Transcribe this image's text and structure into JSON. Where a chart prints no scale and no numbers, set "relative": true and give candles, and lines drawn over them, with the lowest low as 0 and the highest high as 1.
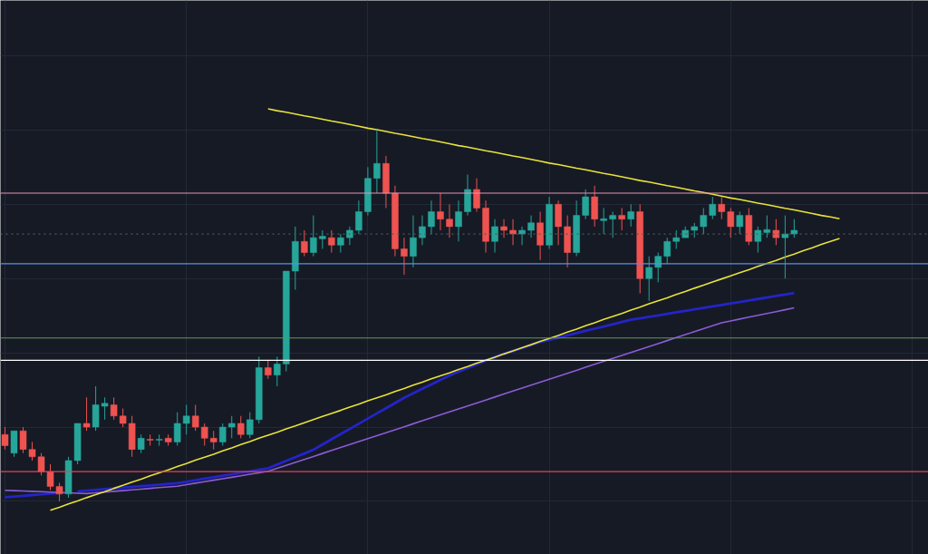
{
  "chart_data": {
    "type": "candlestick",
    "relative": true,
    "grid": true,
    "categories": [
      null,
      null,
      null,
      null,
      null,
      null,
      null,
      null,
      null,
      null,
      null,
      null,
      null,
      null,
      null,
      null,
      null,
      null,
      null,
      null,
      null,
      null,
      null,
      null,
      null,
      null,
      null,
      null,
      null,
      null,
      null,
      null,
      null,
      null,
      null,
      null,
      null,
      null,
      null,
      null,
      null,
      null,
      null,
      null,
      null,
      null,
      null,
      null,
      null,
      null,
      null,
      null,
      null,
      null,
      null,
      null,
      null,
      null,
      null,
      null,
      null,
      null,
      null,
      null,
      null,
      null,
      null,
      null,
      null,
      null,
      null,
      null,
      null,
      null,
      null,
      null,
      null,
      null,
      null,
      null,
      null,
      null,
      null,
      null,
      null,
      null,
      null,
      null,
      null,
      null,
      null,
      null,
      null
    ],
    "ohlc": [
      [
        0.18,
        0.2,
        0.14,
        0.15
      ],
      [
        0.13,
        0.19,
        0.12,
        0.19
      ],
      [
        0.19,
        0.2,
        0.13,
        0.14
      ],
      [
        0.14,
        0.16,
        0.11,
        0.12
      ],
      [
        0.12,
        0.13,
        0.07,
        0.08
      ],
      [
        0.08,
        0.1,
        0.03,
        0.04
      ],
      [
        0.04,
        0.05,
        0,
        0.02
      ],
      [
        0.02,
        0.12,
        0.01,
        0.11
      ],
      [
        0.11,
        0.21,
        0.1,
        0.21
      ],
      [
        0.21,
        0.28,
        0.19,
        0.2
      ],
      [
        0.2,
        0.31,
        0.19,
        0.26
      ],
      [
        0.256,
        0.28,
        0.22,
        0.264
      ],
      [
        0.26,
        0.28,
        0.22,
        0.23
      ],
      [
        0.23,
        0.25,
        0.2,
        0.21
      ],
      [
        0.21,
        0.23,
        0.12,
        0.14
      ],
      [
        0.14,
        0.18,
        0.13,
        0.17
      ],
      [
        0.167,
        0.18,
        0.15,
        0.165
      ],
      [
        0.165,
        0.18,
        0.15,
        0.167
      ],
      [
        0.17,
        0.18,
        0.15,
        0.16
      ],
      [
        0.16,
        0.24,
        0.15,
        0.21
      ],
      [
        0.21,
        0.26,
        0.18,
        0.23
      ],
      [
        0.23,
        0.26,
        0.19,
        0.2
      ],
      [
        0.2,
        0.21,
        0.15,
        0.17
      ],
      [
        0.17,
        0.19,
        0.14,
        0.16
      ],
      [
        0.16,
        0.21,
        0.15,
        0.2
      ],
      [
        0.2,
        0.23,
        0.17,
        0.21
      ],
      [
        0.21,
        0.23,
        0.17,
        0.18
      ],
      [
        0.18,
        0.24,
        0.17,
        0.22
      ],
      [
        0.22,
        0.39,
        0.21,
        0.36
      ],
      [
        0.36,
        0.38,
        0.33,
        0.34
      ],
      [
        0.34,
        0.39,
        0.31,
        0.37
      ],
      [
        0.37,
        0.62,
        0.35,
        0.62
      ],
      [
        0.62,
        0.74,
        0.57,
        0.7
      ],
      [
        0.7,
        0.73,
        0.66,
        0.67
      ],
      [
        0.67,
        0.77,
        0.66,
        0.71
      ],
      [
        0.707,
        0.73,
        0.68,
        0.714
      ],
      [
        0.71,
        0.73,
        0.67,
        0.69
      ],
      [
        0.69,
        0.72,
        0.67,
        0.71
      ],
      [
        0.71,
        0.74,
        0.69,
        0.73
      ],
      [
        0.73,
        0.81,
        0.72,
        0.78
      ],
      [
        0.78,
        0.9,
        0.77,
        0.87
      ],
      [
        0.87,
        1.0,
        0.83,
        0.91
      ],
      [
        0.91,
        0.93,
        0.79,
        0.83
      ],
      [
        0.83,
        0.85,
        0.66,
        0.68
      ],
      [
        0.68,
        0.71,
        0.61,
        0.66
      ],
      [
        0.66,
        0.77,
        0.63,
        0.71
      ],
      [
        0.71,
        0.77,
        0.69,
        0.74
      ],
      [
        0.74,
        0.81,
        0.72,
        0.78
      ],
      [
        0.78,
        0.83,
        0.73,
        0.76
      ],
      [
        0.76,
        0.8,
        0.71,
        0.74
      ],
      [
        0.74,
        0.81,
        0.7,
        0.78
      ],
      [
        0.78,
        0.88,
        0.77,
        0.84
      ],
      [
        0.84,
        0.87,
        0.78,
        0.79
      ],
      [
        0.79,
        0.81,
        0.67,
        0.7
      ],
      [
        0.7,
        0.76,
        0.67,
        0.74
      ],
      [
        0.74,
        0.76,
        0.71,
        0.73
      ],
      [
        0.73,
        0.76,
        0.69,
        0.72
      ],
      [
        0.72,
        0.74,
        0.69,
        0.73
      ],
      [
        0.73,
        0.77,
        0.71,
        0.75
      ],
      [
        0.75,
        0.78,
        0.65,
        0.69
      ],
      [
        0.69,
        0.82,
        0.68,
        0.8
      ],
      [
        0.8,
        0.81,
        0.69,
        0.74
      ],
      [
        0.74,
        0.77,
        0.63,
        0.67
      ],
      [
        0.67,
        0.81,
        0.66,
        0.77
      ],
      [
        0.77,
        0.84,
        0.76,
        0.82
      ],
      [
        0.82,
        0.85,
        0.74,
        0.76
      ],
      [
        0.756,
        0.79,
        0.72,
        0.761
      ],
      [
        0.76,
        0.78,
        0.71,
        0.77
      ],
      [
        0.77,
        0.79,
        0.73,
        0.76
      ],
      [
        0.76,
        0.8,
        0.74,
        0.78
      ],
      [
        0.78,
        0.8,
        0.56,
        0.6
      ],
      [
        0.6,
        0.66,
        0.54,
        0.63
      ],
      [
        0.63,
        0.67,
        0.59,
        0.66
      ],
      [
        0.66,
        0.71,
        0.64,
        0.7
      ],
      [
        0.7,
        0.73,
        0.68,
        0.71
      ],
      [
        0.71,
        0.74,
        0.71,
        0.73
      ],
      [
        0.73,
        0.75,
        0.71,
        0.74
      ],
      [
        0.74,
        0.79,
        0.72,
        0.77
      ],
      [
        0.77,
        0.82,
        0.76,
        0.8
      ],
      [
        0.8,
        0.82,
        0.76,
        0.78
      ],
      [
        0.78,
        0.79,
        0.71,
        0.74
      ],
      [
        0.74,
        0.78,
        0.72,
        0.77
      ],
      [
        0.77,
        0.79,
        0.69,
        0.7
      ],
      [
        0.7,
        0.74,
        0.67,
        0.73
      ],
      [
        0.724,
        0.77,
        0.71,
        0.732
      ],
      [
        0.73,
        0.76,
        0.69,
        0.71
      ],
      [
        0.71,
        0.77,
        0.6,
        0.72
      ],
      [
        0.72,
        0.76,
        0.71,
        0.73
      ],
      null,
      null,
      null,
      null,
      null
    ],
    "colors": [
      "#ef5350",
      "#26a69a",
      "#ef5350",
      "#ef5350",
      "#ef5350",
      "#ef5350",
      "#ef5350",
      "#26a69a",
      "#26a69a",
      "#ef5350",
      "#26a69a",
      "#26a69a",
      "#ef5350",
      "#ef5350",
      "#ef5350",
      "#26a69a",
      "#ef5350",
      "#26a69a",
      "#ef5350",
      "#26a69a",
      "#26a69a",
      "#ef5350",
      "#ef5350",
      "#ef5350",
      "#26a69a",
      "#26a69a",
      "#ef5350",
      "#26a69a",
      "#26a69a",
      "#ef5350",
      "#26a69a",
      "#26a69a",
      "#26a69a",
      "#ef5350",
      "#26a69a",
      "#26a69a",
      "#ef5350",
      "#26a69a",
      "#26a69a",
      "#26a69a",
      "#26a69a",
      "#26a69a",
      "#ef5350",
      "#ef5350",
      "#ef5350",
      "#26a69a",
      "#26a69a",
      "#26a69a",
      "#ef5350",
      "#ef5350",
      "#26a69a",
      "#26a69a",
      "#ef5350",
      "#ef5350",
      "#26a69a",
      "#ef5350",
      "#ef5350",
      "#26a69a",
      "#26a69a",
      "#ef5350",
      "#26a69a",
      "#ef5350",
      "#ef5350",
      "#26a69a",
      "#26a69a",
      "#ef5350",
      "#26a69a",
      "#26a69a",
      "#ef5350",
      "#26a69a",
      "#ef5350",
      "#26a69a",
      "#26a69a",
      "#26a69a",
      "#26a69a",
      "#26a69a",
      "#26a69a",
      "#26a69a",
      "#26a69a",
      "#ef5350",
      "#ef5350",
      "#26a69a",
      "#ef5350",
      "#26a69a",
      "#26a69a",
      "#ef5350",
      "#26a69a",
      "#26a69a",
      null,
      null,
      null,
      null,
      null
    ],
    "series": [
      {
        "type": "line",
        "color": "#2424c8",
        "values": [
          0.011,
          0.013,
          0.015,
          0.017,
          0.019,
          0.021,
          0.023,
          null,
          0.027,
          0.029,
          0.031,
          0.033,
          0.035,
          0.037,
          0.039,
          0.041,
          0.043,
          0.045,
          0.047,
          0.049,
          0.053,
          0.057,
          0.061,
          0.065,
          0.069,
          0.073,
          0.077,
          0.081,
          0.085,
          0.089,
          0.099,
          0.109,
          0.119,
          0.129,
          0.139,
          0.153,
          0.167,
          0.181,
          0.195,
          0.209,
          0.223,
          0.237,
          0.251,
          0.265,
          0.279,
          0.291,
          0.303,
          0.315,
          0.327,
          0.339,
          0.349,
          0.359,
          0.369,
          0.379,
          0.389,
          0.397,
          0.405,
          0.413,
          0.421,
          0.429,
          0.435,
          0.441,
          0.447,
          0.453,
          0.459,
          0.465,
          0.471,
          0.477,
          0.483,
          0.489,
          0.493,
          0.497,
          0.501,
          0.505,
          0.509,
          0.513,
          0.517,
          0.521,
          0.525,
          0.529,
          0.533,
          0.537,
          0.541,
          0.545,
          0.549,
          0.553,
          0.557,
          0.561,
          null,
          null,
          null,
          null,
          null
        ]
      },
      {
        "type": "line",
        "color": "#8a5cd6",
        "values": [
          0.03,
          0.029,
          0.028,
          0.027,
          0.026,
          0.025,
          0.024,
          0.023,
          0.022,
          0.021,
          0.023,
          0.025,
          0.027,
          0.029,
          0.031,
          0.033,
          0.035,
          0.037,
          0.039,
          0.041,
          0.045,
          0.049,
          0.053,
          0.057,
          0.061,
          0.065,
          0.069,
          0.073,
          0.077,
          0.081,
          0.089,
          0.097,
          0.105,
          0.113,
          0.121,
          0.129,
          0.137,
          0.145,
          0.153,
          0.161,
          0.169,
          0.177,
          0.185,
          0.193,
          0.201,
          0.209,
          0.217,
          0.225,
          0.233,
          0.241,
          0.249,
          0.257,
          0.265,
          0.273,
          0.281,
          0.289,
          0.297,
          0.305,
          0.313,
          0.321,
          0.329,
          0.337,
          0.345,
          0.353,
          0.361,
          0.369,
          0.377,
          0.385,
          0.393,
          0.401,
          0.409,
          0.417,
          0.425,
          0.433,
          0.441,
          0.449,
          0.457,
          0.465,
          0.473,
          0.481,
          0.486,
          0.491,
          0.496,
          0.501,
          0.506,
          0.511,
          0.516,
          0.521,
          null,
          null,
          null,
          null,
          null
        ]
      },
      {
        "type": "line",
        "color": "#e8e23a",
        "values": [
          null,
          null,
          null,
          null,
          null,
          null,
          null,
          null,
          null,
          null,
          null,
          null,
          null,
          null,
          null,
          null,
          null,
          null,
          null,
          null,
          null,
          null,
          null,
          null,
          null,
          null,
          null,
          null,
          null,
          1.057,
          1.052,
          1.048,
          1.043,
          1.038,
          1.034,
          1.029,
          1.024,
          1.02,
          1.015,
          1.01,
          1.005,
          1.001,
          0.996,
          0.991,
          0.987,
          0.982,
          0.977,
          0.973,
          0.968,
          0.963,
          0.958,
          0.954,
          0.949,
          0.944,
          0.94,
          0.935,
          0.93,
          0.926,
          0.921,
          0.916,
          0.911,
          0.907,
          0.902,
          0.897,
          0.893,
          0.888,
          0.883,
          0.879,
          0.874,
          0.869,
          0.864,
          0.86,
          0.855,
          0.85,
          0.846,
          0.841,
          0.836,
          0.832,
          0.827,
          0.822,
          0.817,
          0.813,
          0.808,
          0.803,
          0.799,
          0.794,
          0.789,
          0.785,
          0.78,
          0.775,
          0.77,
          0.766,
          0.761
        ]
      },
      {
        "type": "line",
        "color": "#e8e23a",
        "values": [
          null,
          null,
          null,
          null,
          null,
          -0.024,
          -0.016,
          -0.007,
          0.001,
          0.01,
          0.018,
          0.026,
          0.035,
          0.043,
          0.052,
          0.06,
          0.069,
          0.077,
          0.085,
          0.094,
          0.102,
          0.111,
          0.119,
          0.127,
          0.136,
          0.144,
          0.153,
          0.161,
          0.17,
          0.178,
          0.186,
          0.195,
          0.203,
          0.212,
          0.22,
          0.229,
          0.237,
          0.245,
          0.254,
          0.262,
          0.271,
          0.279,
          0.287,
          0.296,
          0.304,
          0.313,
          0.321,
          0.33,
          0.338,
          0.346,
          0.355,
          0.363,
          0.372,
          0.38,
          0.388,
          0.397,
          0.405,
          0.414,
          0.422,
          0.431,
          0.439,
          0.447,
          0.456,
          0.464,
          0.473,
          0.481,
          0.49,
          0.498,
          0.506,
          0.515,
          0.523,
          0.532,
          0.54,
          0.548,
          0.557,
          0.565,
          0.574,
          0.582,
          0.591,
          0.599,
          0.607,
          0.616,
          0.624,
          0.633,
          0.641,
          0.649,
          0.658,
          0.666,
          0.675,
          0.683,
          0.692,
          0.7,
          0.708
        ]
      }
    ],
    "ref_lines": [
      {
        "axis": "y",
        "value": 0.83,
        "color": "#e891b8"
      },
      {
        "axis": "y",
        "value": 0.72,
        "color": "#4a5a5e",
        "line_style": "dotted"
      },
      {
        "axis": "y",
        "value": 0.64,
        "color": "#5b8fe0"
      },
      {
        "axis": "y",
        "value": 0.44,
        "color": "#5f9a55"
      },
      {
        "axis": "y",
        "value": 0.38,
        "color": "#ffffff"
      },
      {
        "axis": "y",
        "value": 0.08,
        "color": "#e0455a"
      }
    ]
  }
}
